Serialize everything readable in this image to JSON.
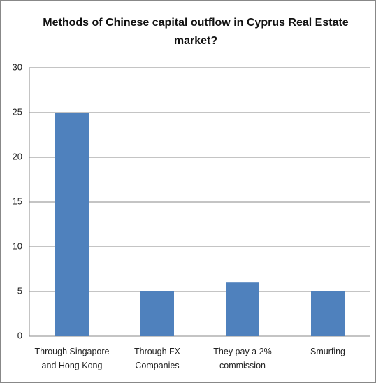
{
  "chart_data": {
    "type": "bar",
    "title": "Methods of Chinese capital outflow in Cyprus Real Estate market?",
    "categories": [
      "Through Singapore and Hong Kong",
      "Through FX Companies",
      "They pay a 2% commission",
      "Smurfing"
    ],
    "values": [
      25,
      5,
      6,
      5
    ],
    "color": "#4f81bd",
    "ylim": [
      0,
      30
    ],
    "yticks": [
      0,
      5,
      10,
      15,
      20,
      25,
      30
    ],
    "grid": true
  }
}
